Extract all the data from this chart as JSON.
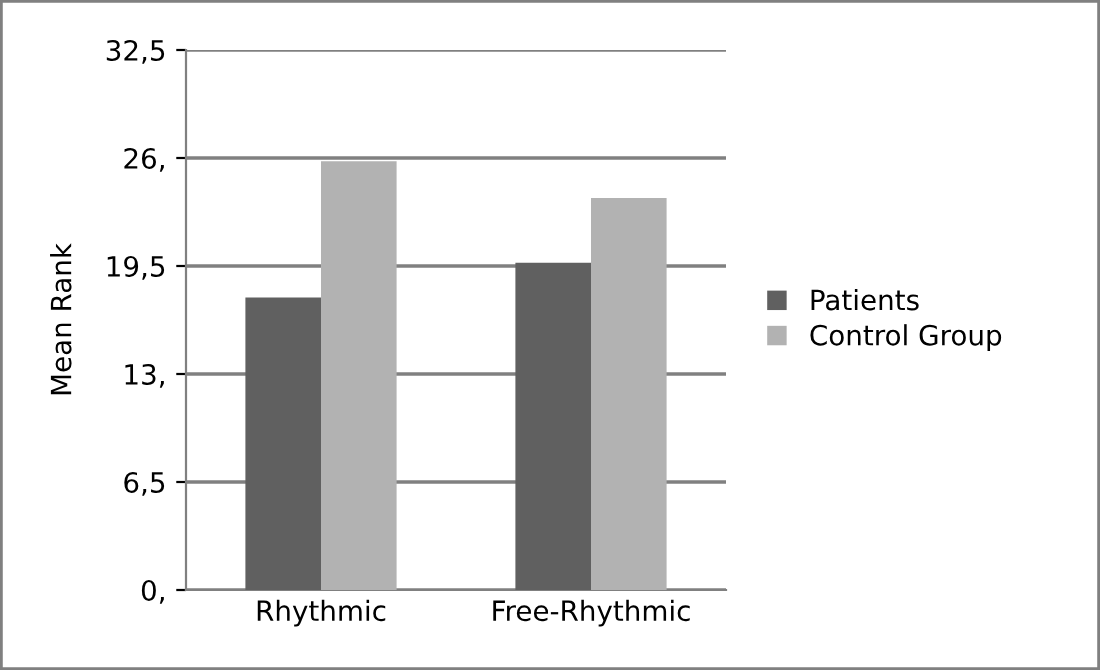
{
  "chart_data": {
    "type": "bar",
    "ylabel": "Mean Rank",
    "categories": [
      "Rhythmic",
      "Free-Rhythmic"
    ],
    "series": [
      {
        "name": "Patients",
        "color": "#606060",
        "values": [
          17.6,
          19.7
        ]
      },
      {
        "name": "Control Group",
        "color": "#b2b2b2",
        "values": [
          25.8,
          23.6
        ]
      }
    ],
    "ylim": [
      0,
      32.5
    ],
    "yticks": [
      {
        "value": 0,
        "label": "0,"
      },
      {
        "value": 6.5,
        "label": "6,5"
      },
      {
        "value": 13,
        "label": "13,"
      },
      {
        "value": 19.5,
        "label": "19,5"
      },
      {
        "value": 26,
        "label": "26,"
      },
      {
        "value": 32.5,
        "label": "32,5"
      }
    ],
    "grid": "y",
    "legend": "right"
  }
}
